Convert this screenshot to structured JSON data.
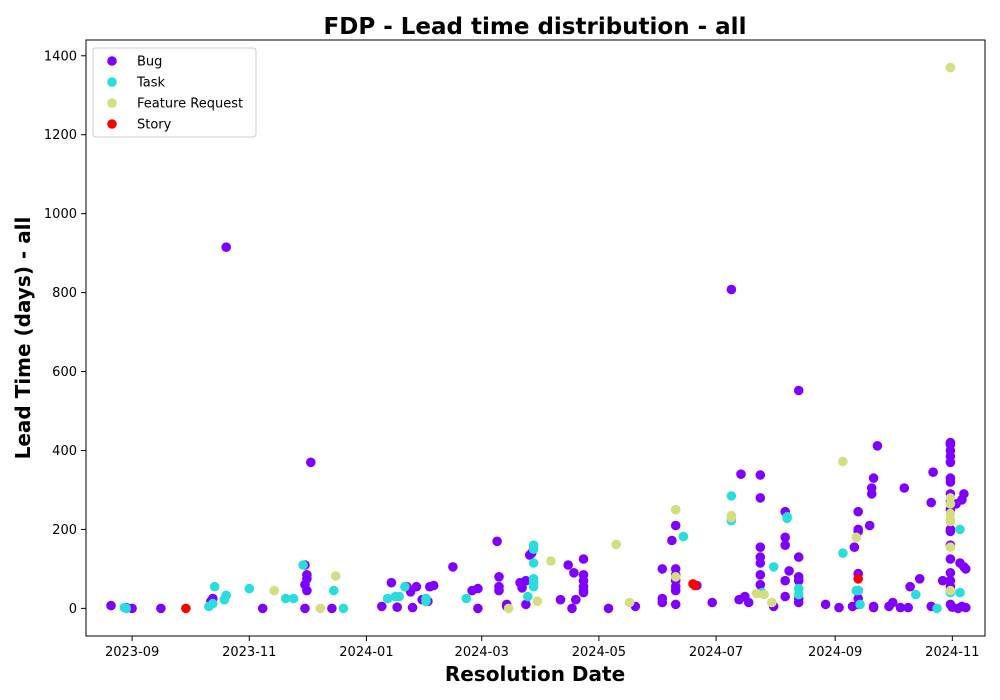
{
  "chart_data": {
    "type": "scatter",
    "title": "FDP - Lead time distribution - all",
    "xlabel": "Resolution Date",
    "ylabel": "Lead Time (days) - all",
    "xlim": [
      "2023-08-08",
      "2024-11-18"
    ],
    "ylim": [
      -70,
      1440
    ],
    "x_ticks": [
      "2023-09-01",
      "2023-11-01",
      "2024-01-01",
      "2024-03-01",
      "2024-05-01",
      "2024-07-01",
      "2024-09-01",
      "2024-11-01"
    ],
    "x_tick_labels": [
      "2023-09",
      "2023-11",
      "2024-01",
      "2024-03",
      "2024-05",
      "2024-07",
      "2024-09",
      "2024-11"
    ],
    "y_ticks": [
      0,
      200,
      400,
      600,
      800,
      1000,
      1200,
      1400
    ],
    "legend_position": "top-left",
    "grid": false,
    "series": [
      {
        "name": "Bug",
        "color": "#8000ff",
        "points": [
          [
            "2023-08-21",
            7
          ],
          [
            "2023-08-29",
            2
          ],
          [
            "2023-09-01",
            0
          ],
          [
            "2023-09-16",
            0
          ],
          [
            "2023-10-13",
            25
          ],
          [
            "2023-10-12",
            18
          ],
          [
            "2023-10-20",
            915
          ],
          [
            "2023-11-08",
            0
          ],
          [
            "2023-11-30",
            110
          ],
          [
            "2023-11-30",
            60
          ],
          [
            "2023-11-30",
            0
          ],
          [
            "2023-12-01",
            85
          ],
          [
            "2023-12-01",
            75
          ],
          [
            "2023-12-01",
            45
          ],
          [
            "2023-12-03",
            370
          ],
          [
            "2023-12-14",
            0
          ],
          [
            "2024-01-09",
            5
          ],
          [
            "2024-01-14",
            65
          ],
          [
            "2024-01-17",
            3
          ],
          [
            "2024-01-22",
            55
          ],
          [
            "2024-01-24",
            42
          ],
          [
            "2024-01-25",
            2
          ],
          [
            "2024-01-27",
            55
          ],
          [
            "2024-01-30",
            22
          ],
          [
            "2024-02-02",
            18
          ],
          [
            "2024-02-03",
            55
          ],
          [
            "2024-02-05",
            58
          ],
          [
            "2024-02-15",
            105
          ],
          [
            "2024-02-25",
            45
          ],
          [
            "2024-02-28",
            0
          ],
          [
            "2024-02-28",
            50
          ],
          [
            "2024-03-09",
            170
          ],
          [
            "2024-03-10",
            80
          ],
          [
            "2024-03-10",
            55
          ],
          [
            "2024-03-10",
            45
          ],
          [
            "2024-03-14",
            5
          ],
          [
            "2024-03-14",
            10
          ],
          [
            "2024-03-21",
            65
          ],
          [
            "2024-03-22",
            52
          ],
          [
            "2024-03-24",
            10
          ],
          [
            "2024-03-24",
            70
          ],
          [
            "2024-03-26",
            135
          ],
          [
            "2024-03-27",
            140
          ],
          [
            "2024-04-11",
            22
          ],
          [
            "2024-04-15",
            110
          ],
          [
            "2024-04-17",
            0
          ],
          [
            "2024-04-18",
            90
          ],
          [
            "2024-04-19",
            22
          ],
          [
            "2024-04-23",
            125
          ],
          [
            "2024-04-23",
            85
          ],
          [
            "2024-04-23",
            70
          ],
          [
            "2024-04-23",
            55
          ],
          [
            "2024-04-23",
            45
          ],
          [
            "2024-04-23",
            40
          ],
          [
            "2024-05-06",
            0
          ],
          [
            "2024-05-20",
            5
          ],
          [
            "2024-06-03",
            100
          ],
          [
            "2024-06-03",
            25
          ],
          [
            "2024-06-03",
            15
          ],
          [
            "2024-06-08",
            172
          ],
          [
            "2024-06-10",
            210
          ],
          [
            "2024-06-10",
            100
          ],
          [
            "2024-06-10",
            85
          ],
          [
            "2024-06-10",
            70
          ],
          [
            "2024-06-10",
            55
          ],
          [
            "2024-06-10",
            45
          ],
          [
            "2024-06-10",
            10
          ],
          [
            "2024-06-21",
            58
          ],
          [
            "2024-06-29",
            15
          ],
          [
            "2024-07-09",
            808
          ],
          [
            "2024-07-13",
            22
          ],
          [
            "2024-07-14",
            340
          ],
          [
            "2024-07-16",
            30
          ],
          [
            "2024-07-18",
            15
          ],
          [
            "2024-07-24",
            338
          ],
          [
            "2024-07-24",
            280
          ],
          [
            "2024-07-24",
            155
          ],
          [
            "2024-07-24",
            130
          ],
          [
            "2024-07-24",
            115
          ],
          [
            "2024-07-24",
            85
          ],
          [
            "2024-07-24",
            60
          ],
          [
            "2024-07-24",
            40
          ],
          [
            "2024-07-31",
            5
          ],
          [
            "2024-08-06",
            245
          ],
          [
            "2024-08-06",
            180
          ],
          [
            "2024-08-06",
            160
          ],
          [
            "2024-08-06",
            70
          ],
          [
            "2024-08-06",
            30
          ],
          [
            "2024-08-08",
            95
          ],
          [
            "2024-08-13",
            552
          ],
          [
            "2024-08-13",
            130
          ],
          [
            "2024-08-13",
            80
          ],
          [
            "2024-08-13",
            70
          ],
          [
            "2024-08-13",
            25
          ],
          [
            "2024-08-13",
            15
          ],
          [
            "2024-08-27",
            10
          ],
          [
            "2024-09-03",
            2
          ],
          [
            "2024-09-10",
            5
          ],
          [
            "2024-09-11",
            155
          ],
          [
            "2024-09-13",
            245
          ],
          [
            "2024-09-13",
            200
          ],
          [
            "2024-09-13",
            195
          ],
          [
            "2024-09-13",
            88
          ],
          [
            "2024-09-13",
            45
          ],
          [
            "2024-09-13",
            25
          ],
          [
            "2024-09-13",
            10
          ],
          [
            "2024-09-19",
            210
          ],
          [
            "2024-09-20",
            305
          ],
          [
            "2024-09-20",
            290
          ],
          [
            "2024-09-21",
            330
          ],
          [
            "2024-09-21",
            5
          ],
          [
            "2024-09-21",
            2
          ],
          [
            "2024-09-23",
            412
          ],
          [
            "2024-09-29",
            5
          ],
          [
            "2024-10-01",
            15
          ],
          [
            "2024-10-05",
            2
          ],
          [
            "2024-10-07",
            305
          ],
          [
            "2024-10-09",
            2
          ],
          [
            "2024-10-10",
            55
          ],
          [
            "2024-10-15",
            75
          ],
          [
            "2024-10-21",
            268
          ],
          [
            "2024-10-21",
            5
          ],
          [
            "2024-10-22",
            345
          ],
          [
            "2024-10-27",
            70
          ],
          [
            "2024-10-31",
            420
          ],
          [
            "2024-10-31",
            415
          ],
          [
            "2024-10-31",
            400
          ],
          [
            "2024-10-31",
            385
          ],
          [
            "2024-10-31",
            370
          ],
          [
            "2024-10-31",
            330
          ],
          [
            "2024-10-31",
            320
          ],
          [
            "2024-10-31",
            290
          ],
          [
            "2024-10-31",
            270
          ],
          [
            "2024-10-31",
            250
          ],
          [
            "2024-10-31",
            200
          ],
          [
            "2024-10-31",
            195
          ],
          [
            "2024-10-31",
            160
          ],
          [
            "2024-10-31",
            125
          ],
          [
            "2024-10-31",
            90
          ],
          [
            "2024-10-31",
            70
          ],
          [
            "2024-10-31",
            55
          ],
          [
            "2024-10-31",
            45
          ],
          [
            "2024-10-31",
            10
          ],
          [
            "2024-11-01",
            3
          ],
          [
            "2024-11-03",
            265
          ],
          [
            "2024-11-04",
            0
          ],
          [
            "2024-11-05",
            115
          ],
          [
            "2024-11-06",
            5
          ],
          [
            "2024-11-06",
            275
          ],
          [
            "2024-11-07",
            290
          ],
          [
            "2024-11-07",
            105
          ],
          [
            "2024-11-08",
            2
          ],
          [
            "2024-11-08",
            100
          ]
        ]
      },
      {
        "name": "Task",
        "color": "#2adddd",
        "points": [
          [
            "2023-08-28",
            2
          ],
          [
            "2023-08-29",
            0
          ],
          [
            "2023-10-11",
            5
          ],
          [
            "2023-10-13",
            12
          ],
          [
            "2023-10-14",
            55
          ],
          [
            "2023-10-19",
            22
          ],
          [
            "2023-10-20",
            33
          ],
          [
            "2023-11-01",
            50
          ],
          [
            "2023-11-20",
            25
          ],
          [
            "2023-11-24",
            25
          ],
          [
            "2023-11-29",
            110
          ],
          [
            "2023-12-15",
            45
          ],
          [
            "2023-12-20",
            0
          ],
          [
            "2024-01-12",
            25
          ],
          [
            "2024-01-16",
            30
          ],
          [
            "2024-01-18",
            30
          ],
          [
            "2024-01-21",
            55
          ],
          [
            "2024-02-01",
            25
          ],
          [
            "2024-02-01",
            18
          ],
          [
            "2024-02-22",
            25
          ],
          [
            "2024-03-25",
            30
          ],
          [
            "2024-03-28",
            160
          ],
          [
            "2024-03-28",
            150
          ],
          [
            "2024-03-28",
            115
          ],
          [
            "2024-03-28",
            75
          ],
          [
            "2024-03-28",
            65
          ],
          [
            "2024-03-28",
            55
          ],
          [
            "2024-06-14",
            182
          ],
          [
            "2024-07-09",
            285
          ],
          [
            "2024-07-09",
            222
          ],
          [
            "2024-07-25",
            40
          ],
          [
            "2024-07-31",
            105
          ],
          [
            "2024-08-07",
            232
          ],
          [
            "2024-08-07",
            228
          ],
          [
            "2024-08-13",
            50
          ],
          [
            "2024-08-13",
            35
          ],
          [
            "2024-09-05",
            140
          ],
          [
            "2024-09-12",
            45
          ],
          [
            "2024-09-13",
            45
          ],
          [
            "2024-09-14",
            10
          ],
          [
            "2024-10-13",
            35
          ],
          [
            "2024-10-24",
            0
          ],
          [
            "2024-10-31",
            40
          ],
          [
            "2024-11-05",
            200
          ],
          [
            "2024-11-05",
            40
          ]
        ]
      },
      {
        "name": "Feature Request",
        "color": "#d4dd80",
        "points": [
          [
            "2023-11-14",
            45
          ],
          [
            "2023-12-08",
            0
          ],
          [
            "2023-12-16",
            82
          ],
          [
            "2024-03-15",
            0
          ],
          [
            "2024-03-30",
            18
          ],
          [
            "2024-04-06",
            120
          ],
          [
            "2024-05-10",
            162
          ],
          [
            "2024-05-17",
            15
          ],
          [
            "2024-06-10",
            250
          ],
          [
            "2024-06-10",
            80
          ],
          [
            "2024-07-09",
            235
          ],
          [
            "2024-07-09",
            230
          ],
          [
            "2024-07-22",
            38
          ],
          [
            "2024-07-26",
            35
          ],
          [
            "2024-07-30",
            15
          ],
          [
            "2024-09-05",
            372
          ],
          [
            "2024-09-12",
            180
          ],
          [
            "2024-10-31",
            1370
          ],
          [
            "2024-10-31",
            280
          ],
          [
            "2024-10-31",
            265
          ],
          [
            "2024-10-31",
            240
          ],
          [
            "2024-10-31",
            225
          ],
          [
            "2024-10-31",
            220
          ],
          [
            "2024-10-31",
            155
          ],
          [
            "2024-10-31",
            45
          ]
        ]
      },
      {
        "name": "Story",
        "color": "#ff0000",
        "points": [
          [
            "2023-09-29",
            0
          ],
          [
            "2024-06-19",
            62
          ],
          [
            "2024-06-20",
            58
          ],
          [
            "2024-09-13",
            75
          ]
        ]
      }
    ]
  }
}
